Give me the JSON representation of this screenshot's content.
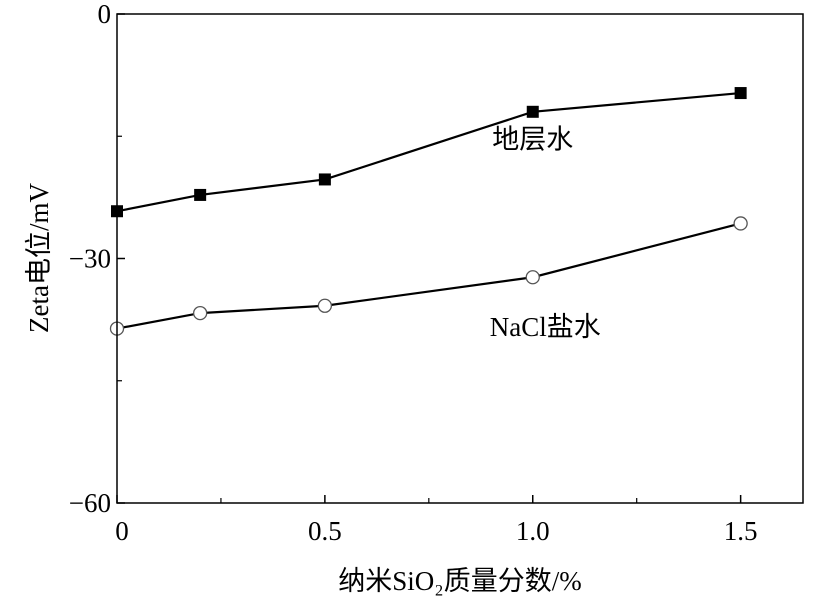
{
  "chart_data": {
    "type": "line",
    "xlabel": "纳米SiO₂质量分数/%",
    "ylabel": "Zeta电位/mV",
    "xlim": [
      0,
      1.65
    ],
    "ylim": [
      -60,
      0
    ],
    "xticks": [
      0,
      0.5,
      1.0,
      1.5
    ],
    "xtick_labels": [
      "0",
      "0.5",
      "1.0",
      "1.5"
    ],
    "x_minor_ticks": [
      0.25,
      0.75,
      1.25
    ],
    "yticks": [
      0,
      -30,
      -60
    ],
    "ytick_labels": [
      "0",
      "−30",
      "−60"
    ],
    "y_minor_ticks": [
      -15,
      -45
    ],
    "grid": false,
    "series": [
      {
        "name": "地层水",
        "marker": "filled-square",
        "color": "#000000",
        "x": [
          0,
          0.2,
          0.5,
          1.0,
          1.5
        ],
        "y": [
          -24.2,
          -22.2,
          -20.3,
          -12.0,
          -9.7
        ],
        "label_at": [
          1.0,
          -16.5
        ]
      },
      {
        "name": "NaCl盐水",
        "marker": "open-circle",
        "color": "#000000",
        "x": [
          0,
          0.2,
          0.5,
          1.0,
          1.5
        ],
        "y": [
          -38.6,
          -36.7,
          -35.8,
          -32.3,
          -25.7
        ],
        "label_at": [
          1.03,
          -39.5
        ]
      }
    ]
  }
}
